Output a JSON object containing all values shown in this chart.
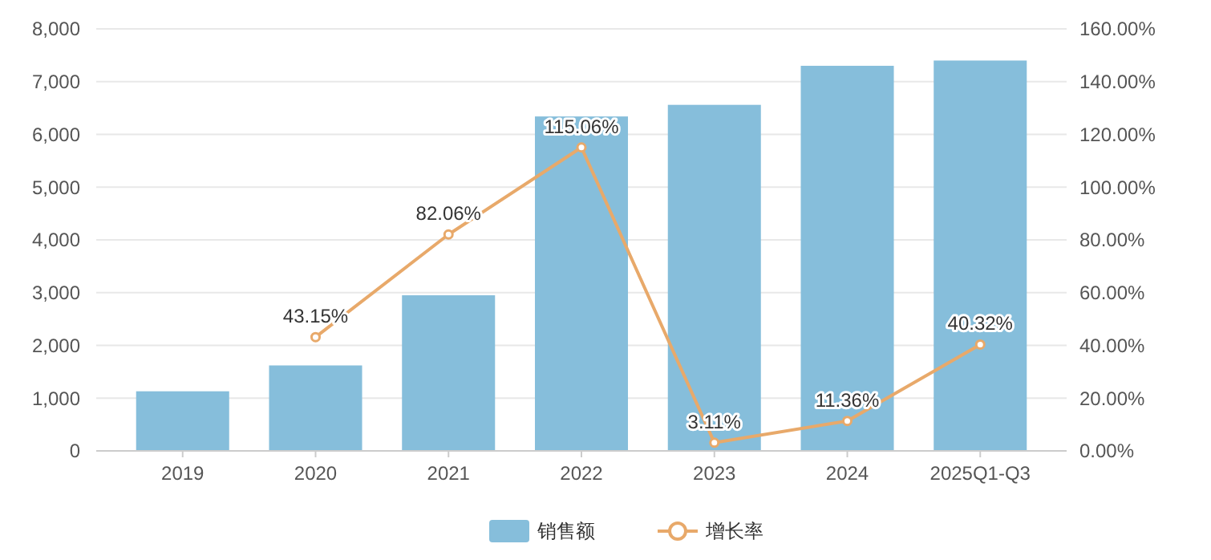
{
  "chart_data": {
    "type": "bar",
    "categories": [
      "2019",
      "2020",
      "2021",
      "2022",
      "2023",
      "2024",
      "2025Q1-Q3"
    ],
    "series": [
      {
        "name": "销售额",
        "color": "#86bedb",
        "values": [
          1130,
          1620,
          2950,
          6340,
          6560,
          7300,
          7400
        ]
      },
      {
        "name": "增长率",
        "type": "line",
        "axis": "y2",
        "color": "#e8a96a",
        "marker": "circle",
        "values": [
          null,
          43.15,
          82.06,
          115.06,
          3.11,
          11.36,
          40.32
        ],
        "value_labels": [
          null,
          "43.15%",
          "82.06%",
          "115.06%",
          "3.11%",
          "11.36%",
          "40.32%"
        ]
      }
    ],
    "ylim": [
      0,
      8000
    ],
    "yticks": [
      0,
      {
        "value": 1000,
        "label": "1,000"
      },
      {
        "value": 2000,
        "label": "2,000"
      },
      {
        "value": 3000,
        "label": "3,000"
      },
      {
        "value": 4000,
        "label": "4,000"
      },
      {
        "value": 5000,
        "label": "5,000"
      },
      {
        "value": 6000,
        "label": "6,000"
      },
      {
        "value": 7000,
        "label": "7,000"
      },
      {
        "value": 8000,
        "label": "8,000"
      }
    ],
    "y2lim": [
      0,
      160
    ],
    "y2ticks": [
      {
        "value": 0,
        "label": "0.00%"
      },
      {
        "value": 20,
        "label": "20.00%"
      },
      {
        "value": 40,
        "label": "40.00%"
      },
      {
        "value": 60,
        "label": "60.00%"
      },
      {
        "value": 80,
        "label": "80.00%"
      },
      {
        "value": 100,
        "label": "100.00%"
      },
      {
        "value": 120,
        "label": "120.00%"
      },
      {
        "value": 140,
        "label": "140.00%"
      },
      {
        "value": 160,
        "label": "160.00%"
      }
    ],
    "grid": "y",
    "legend": "bottom"
  }
}
